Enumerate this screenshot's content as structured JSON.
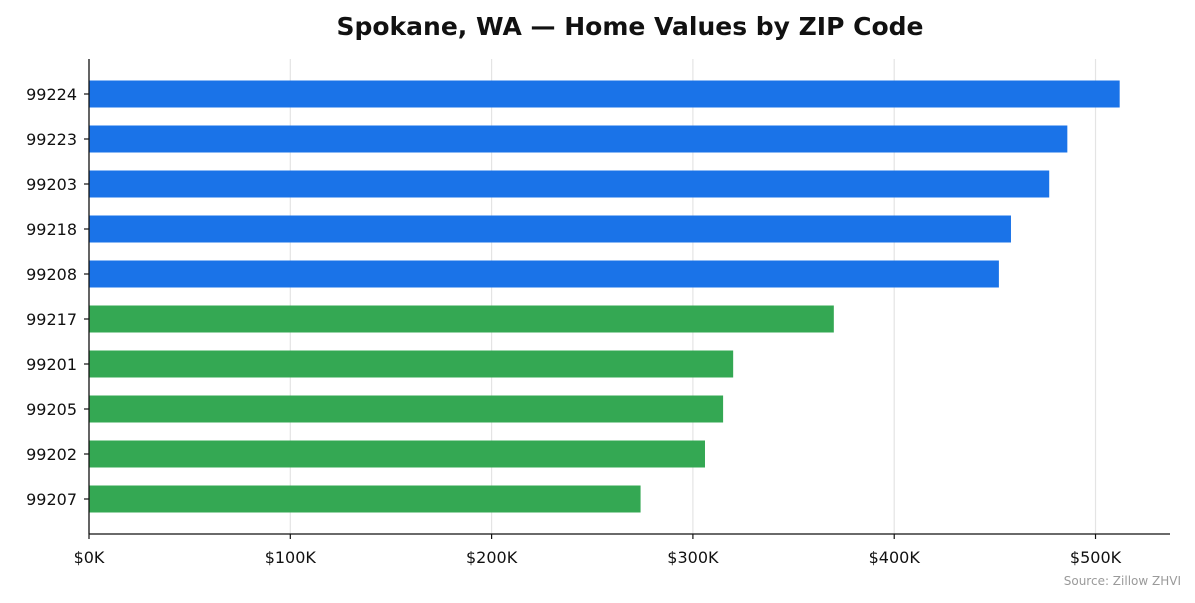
{
  "chart_data": {
    "type": "bar",
    "orientation": "horizontal",
    "title": "Spokane, WA — Home Values by ZIP Code",
    "xlabel": "",
    "ylabel": "",
    "categories": [
      "99224",
      "99223",
      "99203",
      "99218",
      "99208",
      "99217",
      "99201",
      "99205",
      "99202",
      "99207"
    ],
    "values": [
      512000,
      486000,
      477000,
      458000,
      452000,
      370000,
      320000,
      315000,
      306000,
      274000
    ],
    "bar_colors": [
      "#1a73e8",
      "#1a73e8",
      "#1a73e8",
      "#1a73e8",
      "#1a73e8",
      "#34a853",
      "#34a853",
      "#34a853",
      "#34a853",
      "#34a853"
    ],
    "xlim": [
      0,
      537000
    ],
    "xticks": [
      0,
      100000,
      200000,
      300000,
      400000,
      500000
    ],
    "xtick_labels": [
      "$0K",
      "$100K",
      "$200K",
      "$300K",
      "$400K",
      "$500K"
    ],
    "grid": "vertical",
    "legend": "none",
    "source": "Source: Zillow ZHVI"
  }
}
